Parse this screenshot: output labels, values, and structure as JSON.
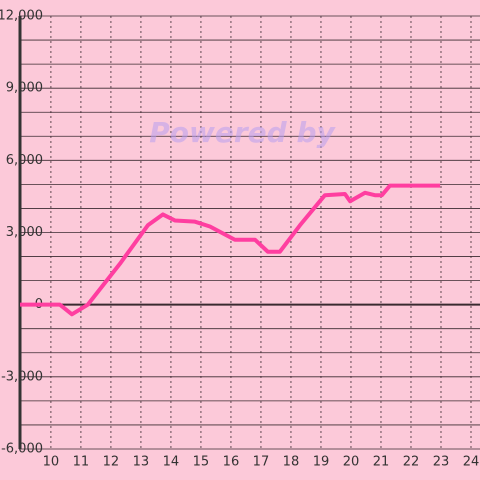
{
  "chart_data": {
    "type": "line",
    "annotation": "Powered by",
    "x": [
      8.97,
      10.3,
      10.7,
      11.23,
      12.3,
      13.23,
      13.73,
      14.13,
      14.8,
      15.3,
      16.13,
      16.8,
      17.23,
      17.63,
      18.3,
      19.13,
      19.8,
      19.97,
      20.47,
      20.8,
      21.03,
      21.3,
      22.97
    ],
    "series": [
      {
        "color": "#ff3ea0",
        "values": [
          0,
          0,
          -400,
          0,
          1700,
          3300,
          3750,
          3500,
          3450,
          3250,
          2700,
          2700,
          2200,
          2200,
          3300,
          4550,
          4600,
          4300,
          4650,
          4550,
          4550,
          4950,
          4950
        ]
      }
    ],
    "xlim": [
      8.97,
      24.3
    ],
    "xticks": [
      10,
      11,
      12,
      13,
      14,
      15,
      16,
      17,
      18,
      19,
      20,
      21,
      22,
      23,
      24
    ],
    "ylim": [
      -6250,
      12000
    ],
    "yticks": [
      {
        "value": -6000,
        "label": "-6,000"
      },
      {
        "value": -3000,
        "label": "-3,000"
      },
      0,
      {
        "value": 3000,
        "label": "3,000"
      },
      {
        "value": 6000,
        "label": "6,000"
      },
      {
        "value": 9000,
        "label": "9,000"
      },
      {
        "value": 12000,
        "label": "12,000"
      }
    ],
    "y_minor_ticks": [
      -5000,
      -4000,
      -2000,
      -1000,
      1000,
      2000,
      4000,
      5000,
      7000,
      8000,
      10000,
      11000
    ],
    "grid": true
  }
}
